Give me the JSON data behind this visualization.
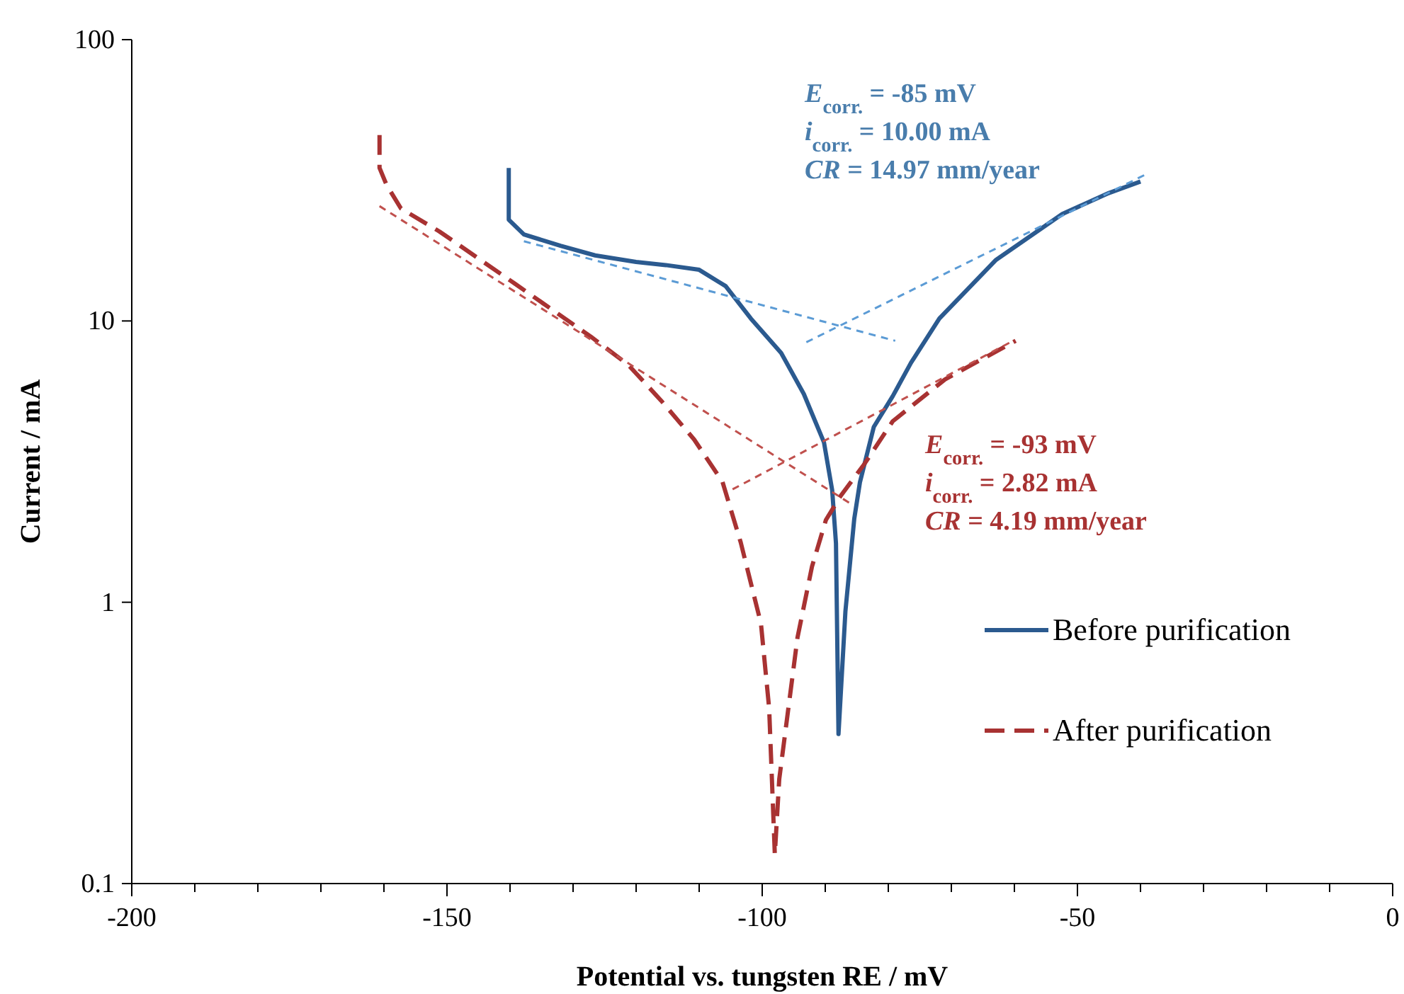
{
  "chart_data": {
    "type": "line",
    "xlabel": "Potential vs. tungsten RE / mV",
    "ylabel": "Current / mA",
    "log": "y",
    "xlim": [
      -200,
      0
    ],
    "ylim": [
      0.1,
      100
    ],
    "xticks": [
      -200,
      {
        "value": -190,
        "label": null
      },
      {
        "value": -180,
        "label": null
      },
      {
        "value": -170,
        "label": null
      },
      {
        "value": -160,
        "label": null
      },
      -150,
      {
        "value": -140,
        "label": null
      },
      {
        "value": -130,
        "label": null
      },
      {
        "value": -120,
        "label": null
      },
      {
        "value": -110,
        "label": null
      },
      -100,
      {
        "value": -90,
        "label": null
      },
      {
        "value": -80,
        "label": null
      },
      {
        "value": -70,
        "label": null
      },
      {
        "value": -60,
        "label": null
      },
      -50,
      {
        "value": -40,
        "label": null
      },
      {
        "value": -30,
        "label": null
      },
      {
        "value": -20,
        "label": null
      },
      {
        "value": -10,
        "label": null
      },
      0
    ],
    "yticks": [
      0.1,
      1,
      10,
      100
    ],
    "grid": false,
    "legend": "right",
    "series": [
      {
        "name": "Before purification",
        "color": "#2b5a8f",
        "line_style": "solid",
        "x": [
          -140.2,
          -140.2,
          -137.8,
          -132,
          -126.5,
          -120,
          -115.3,
          -110,
          -105.8,
          -101.8,
          -97,
          -93.4,
          -90.2,
          -88.9,
          -88.3,
          -87.9,
          -86.8,
          -85.4,
          -84.5,
          -82.3,
          -79.3,
          -76.4,
          -71.9,
          -62.9,
          -52.4,
          -45,
          -40
        ],
        "values": [
          35,
          22.9,
          20.3,
          18.5,
          17.1,
          16.2,
          15.8,
          15.2,
          13.3,
          10.2,
          7.7,
          5.5,
          3.7,
          2.5,
          1.62,
          0.34,
          0.93,
          1.98,
          2.67,
          4.2,
          5.4,
          7.1,
          10.2,
          16.5,
          24,
          28.5,
          31.3
        ]
      },
      {
        "name": "After purification",
        "color": "#a83232",
        "line_style": "dashed",
        "x": [
          -160.7,
          -160.7,
          -159.6,
          -157.3,
          -151.2,
          -139.3,
          -127.2,
          -121.3,
          -116,
          -110.8,
          -106.3,
          -103.4,
          -100.2,
          -98.9,
          -98,
          -97.3,
          -94.4,
          -92.1,
          -89.9,
          -87.6,
          -83.8,
          -79.3,
          -71,
          -59.8
        ],
        "values": [
          45.8,
          35,
          30.5,
          25.1,
          20.8,
          13.6,
          8.8,
          7,
          5.2,
          3.79,
          2.68,
          1.63,
          0.84,
          0.42,
          0.127,
          0.235,
          0.75,
          1.34,
          1.96,
          2.38,
          3.1,
          4.4,
          6.2,
          8.5
        ]
      },
      {
        "color": "#5b9bd5",
        "line_style": "dashed",
        "x": [
          -137.8,
          -78.9
        ],
        "values": [
          19.2,
          8.5
        ]
      },
      {
        "color": "#5b9bd5",
        "line_style": "dashed",
        "x": [
          -93,
          -38.9
        ],
        "values": [
          8.4,
          33.4
        ]
      },
      {
        "color": "#c0504d",
        "line_style": "dashed",
        "x": [
          -160.7,
          -86.1
        ],
        "values": [
          25.6,
          2.25
        ]
      },
      {
        "color": "#c0504d",
        "line_style": "dashed",
        "x": [
          -104.7,
          -60.2
        ],
        "values": [
          2.52,
          8.5
        ]
      }
    ],
    "annotations": [
      "E$_{corr.}$ = -85 mV",
      "i$_{corr.}$ = 10.00 mA",
      "CR = 14.97 mm/year",
      "E$_{corr.}$ = -93 mV",
      "i$_{corr.}$ = 2.82 mA",
      "CR = 4.19 mm/year"
    ]
  }
}
